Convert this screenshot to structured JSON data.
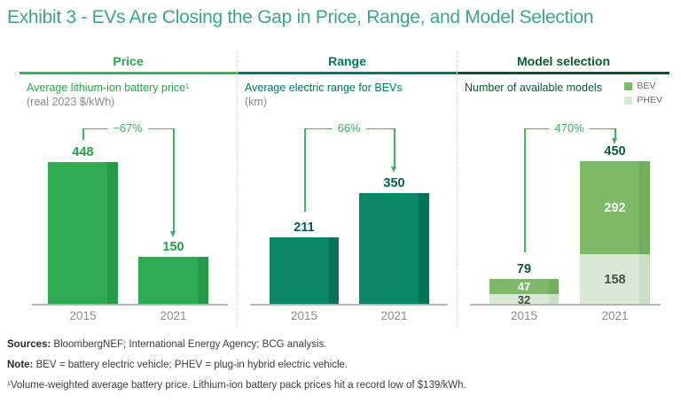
{
  "title": "Exhibit 3 - EVs Are Closing the Gap in Price, Range, and Model Selection",
  "colors": {
    "title_teal": "#3aa48c",
    "price_accent": "#2aa54c",
    "price_bar": "#2fac52",
    "range_accent": "#00795f",
    "range_bar": "#0a8767",
    "model_accent": "#0b5b30",
    "bev_green": "#7cba68",
    "phev_light_green": "#d8e8d2",
    "annotation_green": "#3cb35f",
    "axis_gray": "#b3b3b3",
    "label_gray": "#8c8c8c"
  },
  "chart_data": [
    {
      "type": "bar",
      "title": "Price",
      "subtitle": "Average lithium-ion battery price¹",
      "unit_label": "(real 2023 $/kWh)",
      "categories": [
        "2015",
        "2021"
      ],
      "values": [
        448,
        150
      ],
      "change_annotation": "−67%",
      "ylim": [
        0,
        500
      ],
      "grid": false
    },
    {
      "type": "bar",
      "title": "Range",
      "subtitle": "Average electric range for BEVs",
      "unit_label": "(km)",
      "categories": [
        "2015",
        "2021"
      ],
      "values": [
        211,
        350
      ],
      "change_annotation": "66%",
      "ylim": [
        0,
        500
      ],
      "grid": false
    },
    {
      "type": "bar",
      "stacked": true,
      "title": "Model selection",
      "subtitle": "Number of available models",
      "categories": [
        "2015",
        "2021"
      ],
      "series": [
        {
          "name": "BEV",
          "values": [
            47,
            292
          ]
        },
        {
          "name": "PHEV",
          "values": [
            32,
            158
          ]
        }
      ],
      "totals": [
        79,
        450
      ],
      "change_annotation": "470%",
      "legend_position": "top-right",
      "ylim": [
        0,
        500
      ],
      "grid": false
    }
  ],
  "footer": {
    "sources_label": "Sources:",
    "sources_text": " BloombergNEF; International Energy Agency; BCG analysis.",
    "note_label": "Note:",
    "note_text": " BEV = battery electric vehicle; PHEV = plug-in hybrid electric vehicle.",
    "footnote": "¹Volume-weighted average battery price. Lithium-ion battery pack prices hit a record low of $139/kWh."
  }
}
